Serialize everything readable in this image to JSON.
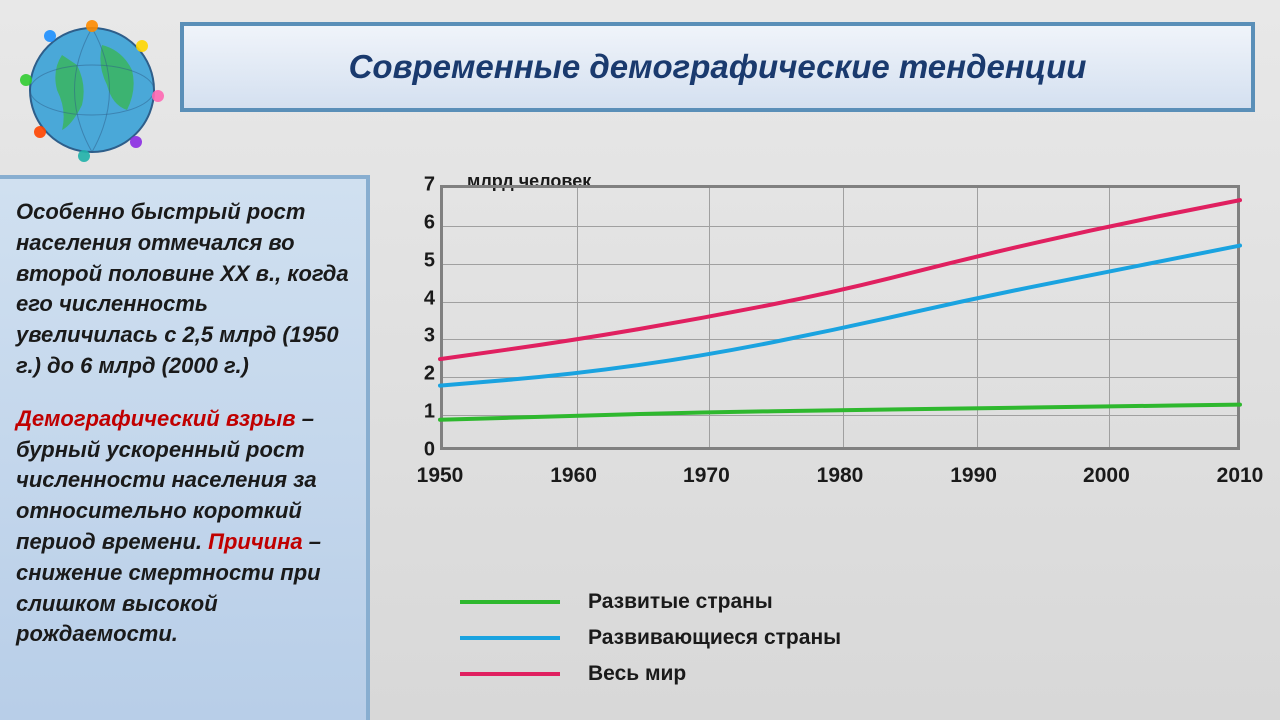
{
  "title": "Современные демографические тенденции",
  "sidebar": {
    "para1": "Особенно быстрый рост населения отмечался во второй половине XX в., когда его численность увеличилась с 2,5 млрд (1950 г.) до 6 млрд (2000 г.)",
    "para2_term": "Демографический взрыв",
    "para2_dash": " – бурный ускоренный рост численности населения за относительно короткий период времени. ",
    "para2_cause_label": "Причина",
    "para2_cause": " – снижение смертности при слишком высокой рождаемости."
  },
  "chart": {
    "type": "line",
    "y_label": "млрд человек",
    "y_ticks": [
      0,
      1,
      2,
      3,
      4,
      5,
      6,
      7
    ],
    "x_ticks": [
      "1950",
      "1960",
      "1970",
      "1980",
      "1990",
      "2000",
      "2010"
    ],
    "x_positions": [
      0,
      0.167,
      0.333,
      0.5,
      0.667,
      0.833,
      1.0
    ],
    "ymax": 7,
    "grid_color": "#a0a0a0",
    "border_color": "#808080",
    "background_color": "transparent",
    "series": [
      {
        "name": "developed",
        "color": "#2eb82e",
        "width": 4,
        "values": [
          0.8,
          0.9,
          1.0,
          1.05,
          1.1,
          1.15,
          1.2
        ]
      },
      {
        "name": "developing",
        "color": "#1aa3e0",
        "width": 4,
        "values": [
          1.7,
          2.0,
          2.5,
          3.2,
          4.0,
          4.7,
          5.4
        ]
      },
      {
        "name": "world",
        "color": "#e02060",
        "width": 4,
        "values": [
          2.4,
          2.9,
          3.5,
          4.2,
          5.1,
          5.9,
          6.6
        ]
      }
    ],
    "legend": [
      {
        "label": "Развитые страны",
        "color": "#2eb82e"
      },
      {
        "label": "Развивающиеся страны",
        "color": "#1aa3e0"
      },
      {
        "label": "Весь мир",
        "color": "#e02060"
      }
    ]
  },
  "globe": {
    "colors": {
      "water": "#4aa8d8",
      "land": "#3cb371",
      "outline": "#2e5e8a"
    }
  }
}
